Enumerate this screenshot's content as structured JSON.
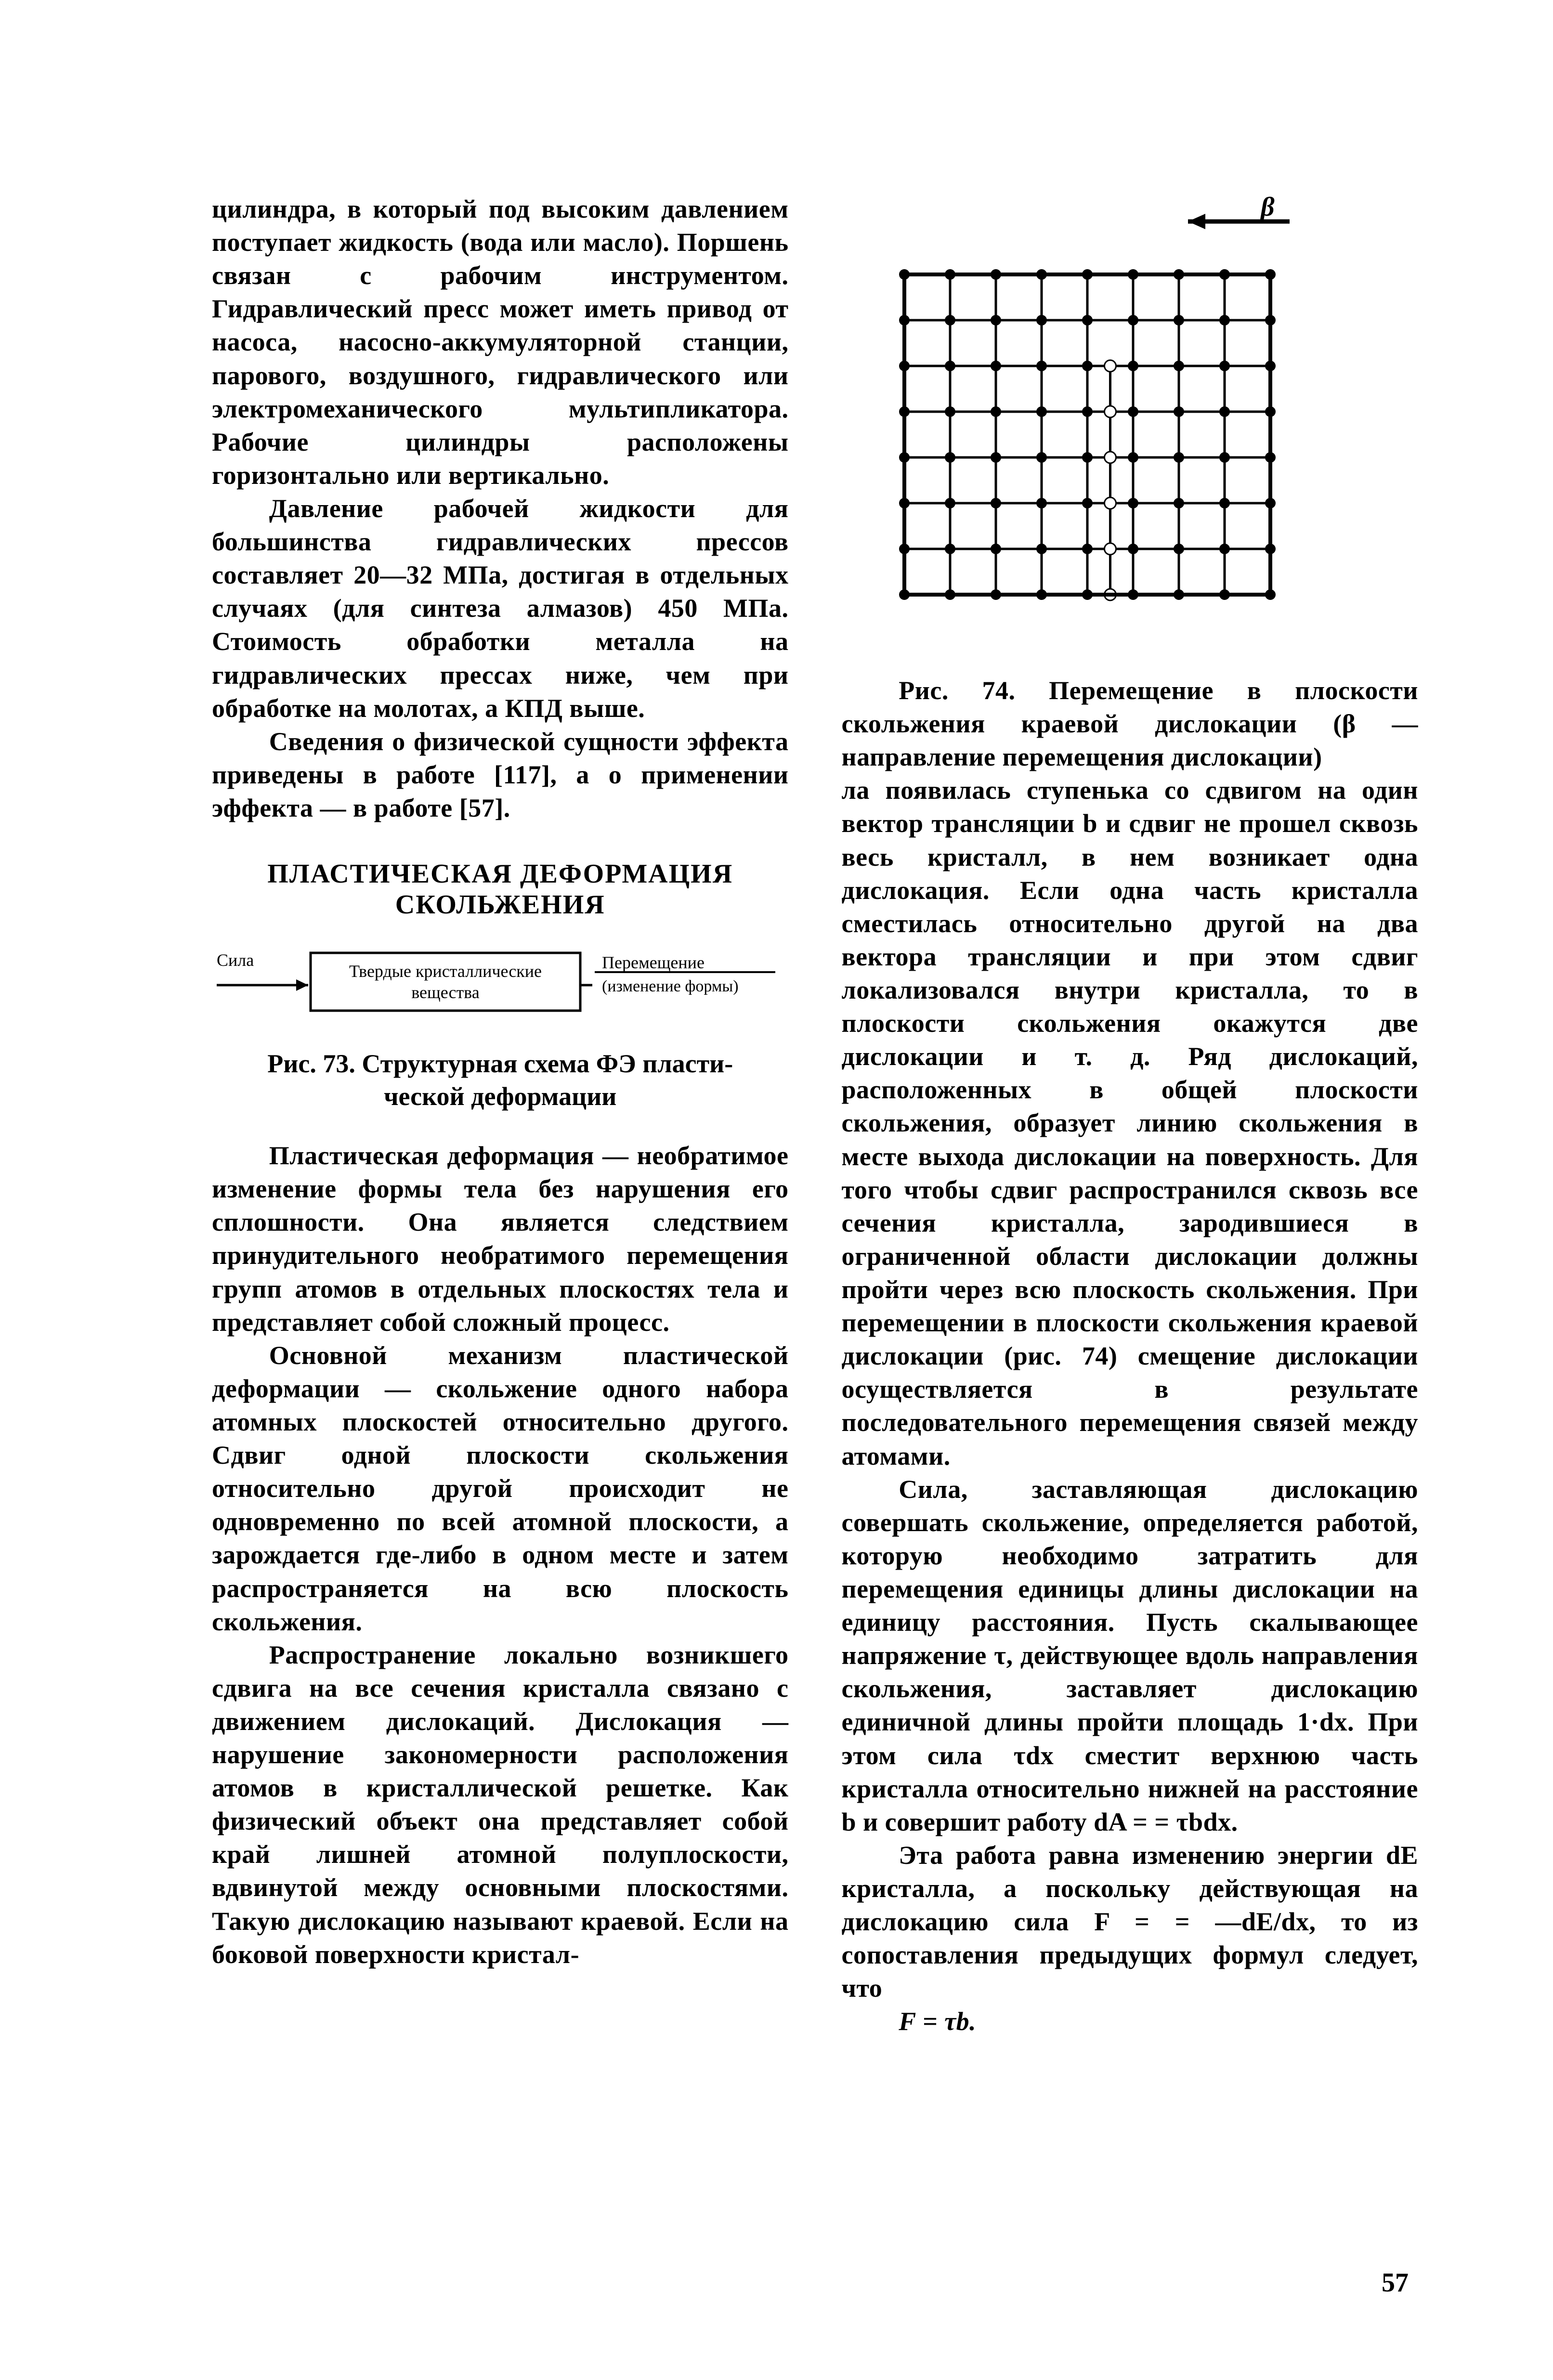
{
  "page_number": "57",
  "left_column": {
    "p1": "цилиндра, в который под высоким давлением поступает жидкость (вода или масло). Поршень связан с рабочим инструментом. Гидравлический пресс может иметь привод от насоса, насосно-аккумуляторной станции, парового, воздушного, гидравлического или электромеханического мультипликатора. Рабочие цилиндры расположены горизонтально или вертикально.",
    "p2": "Давление рабочей жидкости для большинства гидравлических прессов составляет 20—32 МПа, достигая в отдельных случаях (для синтеза алмазов) 450 МПа. Стоимость обработки металла на гидравлических прессах ниже, чем при обработке на молотах, а КПД выше.",
    "p3": "Сведения о физической сущности эффекта приведены в работе [117], а о применении эффекта — в работе [57].",
    "section_title_1": "ПЛАСТИЧЕСКАЯ ДЕФОРМАЦИЯ",
    "section_title_2": "СКОЛЬЖЕНИЯ",
    "fig73_caption_1": "Рис. 73. Структурная схема ФЭ пласти-",
    "fig73_caption_2": "ческой деформации",
    "p4": "Пластическая деформация — необратимое изменение формы тела без нарушения его сплошности. Она является следствием принудительного необратимого перемещения групп атомов в отдельных плоскостях тела и представляет собой сложный процесс.",
    "p5": "Основной механизм пластической деформации — скольжение одного набора атомных плоскостей относительно другого. Сдвиг одной плоскости скольжения относительно другой происходит не одновременно по всей атомной плоскости, а зарождается где-либо в одном месте и затем распространяется на всю плоскость скольжения.",
    "p6": "Распространение локально возникшего сдвига на все сечения кристалла связано с движением дислокаций. Дислокация — нарушение закономерности расположения атомов в кристаллической решетке. Как физический объект она представляет собой край лишней атомной полуплоскости, вдвинутой между основными плоскостями. Такую дислокацию называют краевой. Если на боковой поверхности кристал-"
  },
  "right_column": {
    "fig74_caption": "Рис. 74. Перемещение в плоскости скольжения краевой дислокации (β — направление перемещения дислокации)",
    "p1": "ла появилась ступенька со сдвигом на один вектор трансляции b и сдвиг не прошел сквозь весь кристалл, в нем возникает одна дислокация. Если одна часть кристалла сместилась относительно другой на два вектора трансляции и при этом сдвиг локализовался внутри кристалла, то в плоскости скольжения окажутся две дислокации и т. д. Ряд дислокаций, расположенных в общей плоскости скольжения, образует линию скольжения в месте выхода дислокации на поверхность. Для того чтобы сдвиг распространился сквозь все сечения кристалла, зародившиеся в ограниченной области дислокации должны пройти через всю плоскость скольжения. При перемещении в плоскости скольжения краевой дислокации (рис. 74) смещение дислокации осуществляется в результате последовательного перемещения связей между атомами.",
    "p2": "Сила, заставляющая дислокацию совершать скольжение, определяется работой, которую необходимо затратить для перемещения единицы длины дислокации на единицу расстояния. Пусть скалывающее напряжение τ, действующее вдоль направления скольжения, заставляет дислокацию единичной длины пройти площадь 1·dx. При этом сила τdx сместит верхнюю часть кристалла относительно нижней на расстояние b и совершит работу dA = = τbdx.",
    "p3": "Эта работа равна изменению энергии dE кристалла, а поскольку действующая на дислокацию сила F = = —dE/dx, то из сопоставления предыдущих формул следует, что",
    "formula": "F = τb."
  },
  "fig73": {
    "type": "flowchart",
    "input_label": "Сила",
    "box_l1": "Твердые кристаллические",
    "box_l2": "вещества",
    "output_l1": "Перемещение",
    "output_l2": "(изменение формы)",
    "colors": {
      "stroke": "#000000",
      "bg": "#ffffff",
      "text": "#000000"
    },
    "font_size": 34,
    "line_width": 4
  },
  "fig74": {
    "type": "lattice-diagram",
    "beta_label": "β",
    "grid": {
      "cols": 9,
      "rows": 8,
      "spacing": 95,
      "jog_col": 5
    },
    "colors": {
      "stroke": "#000000",
      "dot_fill": "#000000",
      "open_dot_fill": "#ffffff",
      "bg": "#ffffff"
    },
    "dot_radius": 11,
    "line_width": 5,
    "arrow_line_width": 9
  }
}
